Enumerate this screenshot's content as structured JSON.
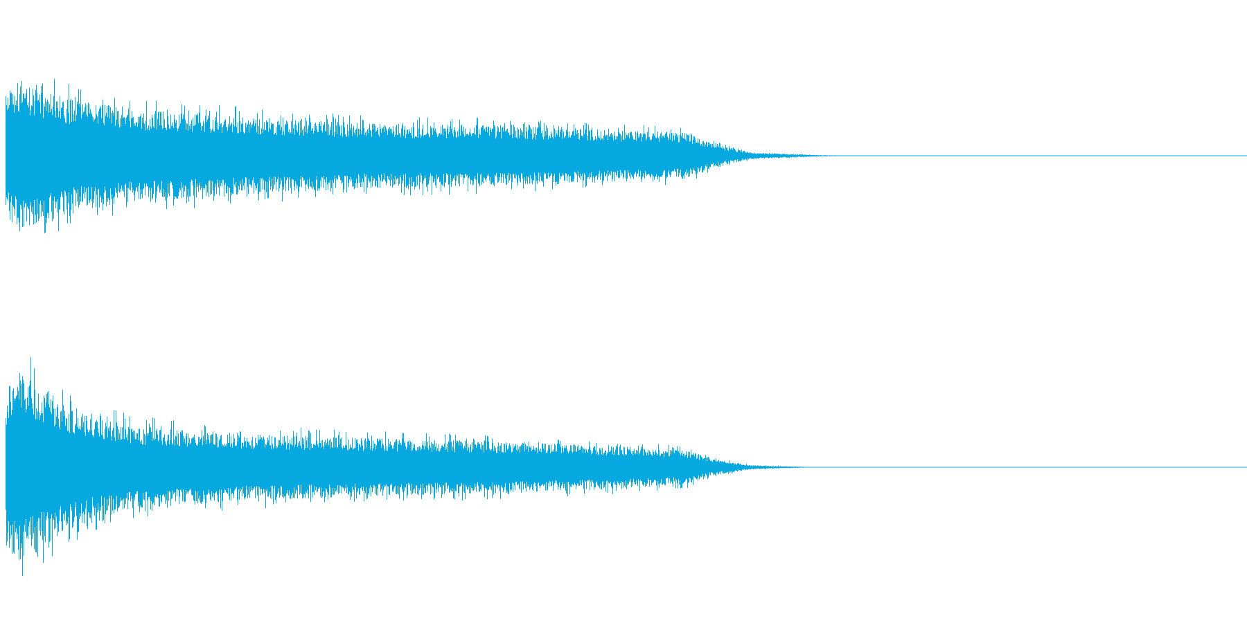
{
  "chart_data": {
    "type": "area",
    "title": "",
    "xlabel": "",
    "ylabel": "",
    "grid": false,
    "legend": "none",
    "xlim": [
      0,
      1
    ],
    "ylim": [
      -1,
      1
    ],
    "color": "#06a8e0",
    "channels": [
      {
        "amplitude_envelope": {
          "t": [
            0.0,
            0.01,
            0.05,
            0.1,
            0.2,
            0.3,
            0.4,
            0.5,
            0.55,
            0.57,
            0.6,
            0.65,
            0.68,
            1.0
          ],
          "amp": [
            0.72,
            0.9,
            0.68,
            0.55,
            0.45,
            0.38,
            0.36,
            0.3,
            0.27,
            0.14,
            0.04,
            0.01,
            0.0,
            0.0
          ]
        }
      },
      {
        "amplitude_envelope": {
          "t": [
            0.0,
            0.01,
            0.05,
            0.1,
            0.2,
            0.3,
            0.4,
            0.5,
            0.55,
            0.57,
            0.6,
            0.64,
            0.66,
            1.0
          ],
          "amp": [
            0.72,
            0.95,
            0.6,
            0.4,
            0.32,
            0.28,
            0.25,
            0.2,
            0.16,
            0.08,
            0.02,
            0.005,
            0.0,
            0.0
          ]
        }
      }
    ]
  }
}
